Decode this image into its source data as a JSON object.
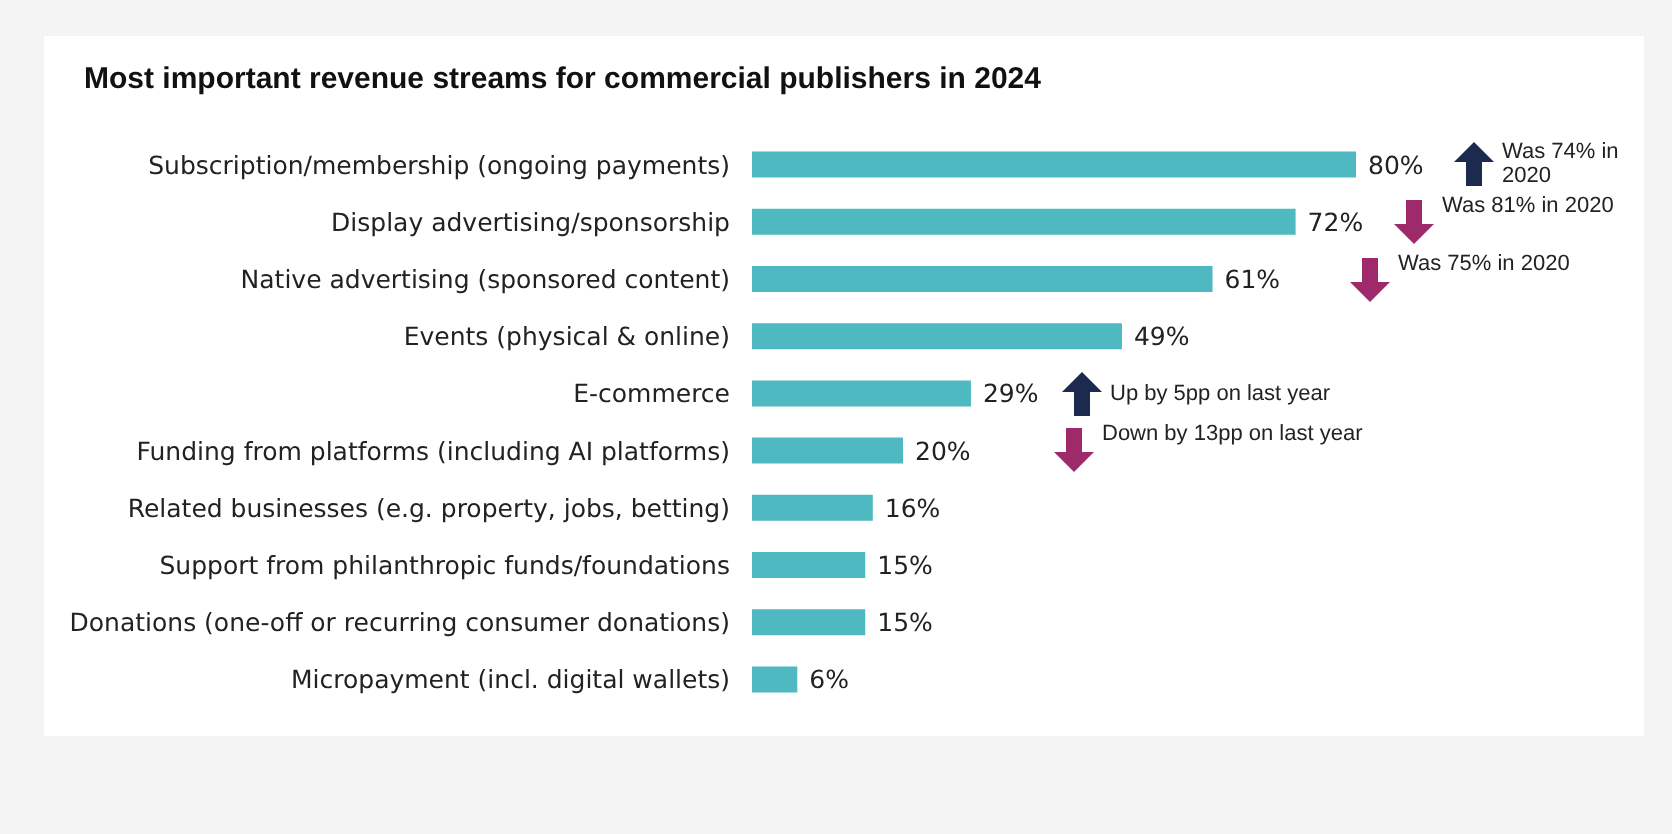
{
  "chart_data": {
    "type": "bar",
    "orientation": "horizontal",
    "title": "Most important revenue streams for commercial publishers in 2024",
    "categories": [
      "Subscription/membership (ongoing payments)",
      "Display advertising/sponsorship",
      "Native advertising (sponsored content)",
      "Events (physical & online)",
      "E-commerce",
      "Funding from platforms (including AI platforms)",
      "Related businesses (e.g. property, jobs, betting)",
      "Support from philanthropic funds/foundations",
      "Donations (one-off or recurring consumer donations)",
      "Micropayment (incl. digital wallets)"
    ],
    "values": [
      80,
      72,
      61,
      49,
      29,
      20,
      16,
      15,
      15,
      6
    ],
    "color": "#4fb9c1",
    "value_labels": [
      "80%",
      "72%",
      "61%",
      "49%",
      "29%",
      "20%",
      "16%",
      "15%",
      "15%",
      "6%"
    ],
    "annotations": [
      "Was 74% in 2020",
      "Was 81% in 2020",
      "Was 75% in 2020",
      "Up by 5pp on last year",
      "Down by 13pp on last year"
    ]
  }
}
